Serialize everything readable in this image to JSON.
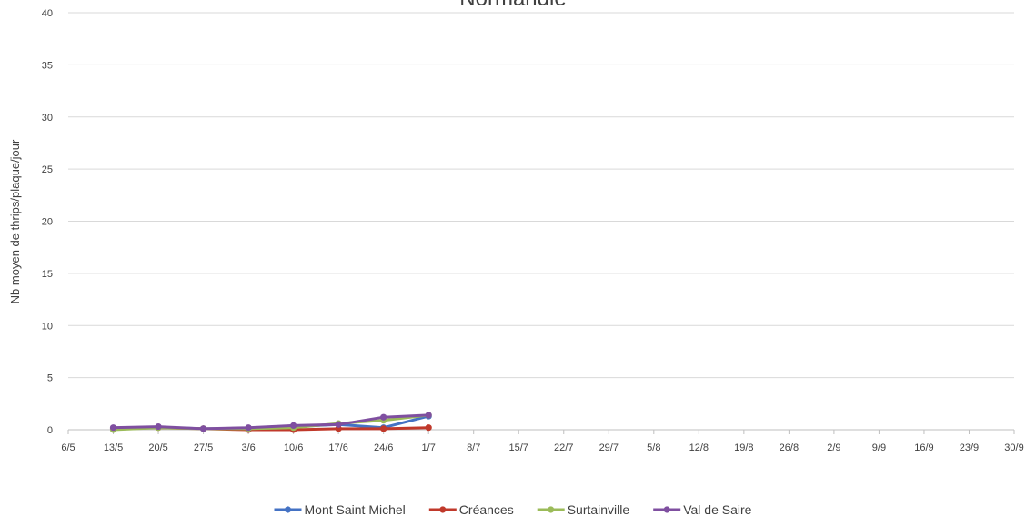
{
  "chart_data": {
    "type": "line",
    "title": "Normandie",
    "xlabel": "",
    "ylabel": "Nb moyen de thrips/plaque/jour",
    "ylim": [
      0,
      40
    ],
    "yticks": [
      "0",
      "5",
      "10",
      "15",
      "20",
      "25",
      "30",
      "35",
      "40"
    ],
    "categories": [
      "6/5",
      "13/5",
      "20/5",
      "27/5",
      "3/6",
      "10/6",
      "17/6",
      "24/6",
      "1/7",
      "8/7",
      "15/7",
      "22/7",
      "29/7",
      "5/8",
      "12/8",
      "19/8",
      "26/8",
      "2/9",
      "9/9",
      "16/9",
      "23/9",
      "30/9"
    ],
    "grid": true,
    "legend_position": "bottom",
    "series": [
      {
        "name": "Mont Saint Michel",
        "color": "#4472C4",
        "values": [
          null,
          0.1,
          0.25,
          0.1,
          0.15,
          0.3,
          0.5,
          0.2,
          1.3,
          null,
          null,
          null,
          null,
          null,
          null,
          null,
          null,
          null,
          null,
          null,
          null,
          null
        ]
      },
      {
        "name": "Créances",
        "color": "#C0392B",
        "values": [
          null,
          0.1,
          0.2,
          0.1,
          0.0,
          0.0,
          0.1,
          0.1,
          0.2,
          null,
          null,
          null,
          null,
          null,
          null,
          null,
          null,
          null,
          null,
          null,
          null,
          null
        ]
      },
      {
        "name": "Surtainville",
        "color": "#9BBB59",
        "values": [
          null,
          0.0,
          0.2,
          0.1,
          0.1,
          0.2,
          0.6,
          0.9,
          1.4,
          null,
          null,
          null,
          null,
          null,
          null,
          null,
          null,
          null,
          null,
          null,
          null,
          null
        ]
      },
      {
        "name": "Val de Saire",
        "color": "#7F4FA0",
        "values": [
          null,
          0.2,
          0.3,
          0.1,
          0.2,
          0.4,
          0.5,
          1.2,
          1.4,
          null,
          null,
          null,
          null,
          null,
          null,
          null,
          null,
          null,
          null,
          null,
          null,
          null
        ]
      }
    ]
  }
}
